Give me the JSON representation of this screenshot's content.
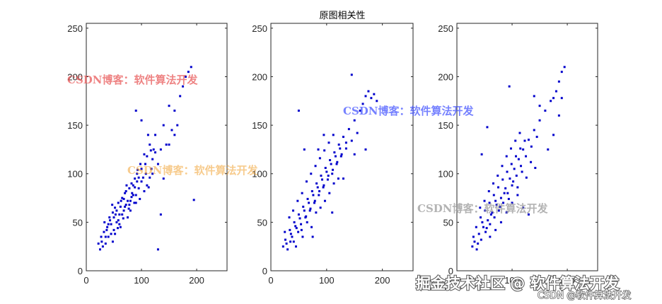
{
  "figure_title": "原图相关性",
  "colors": {
    "points": "#0000cc",
    "axes": "#262626",
    "wm_red": "#e85a5a",
    "wm_blue": "#3b4cff",
    "wm_orange": "#f0a030",
    "wm_gray": "#9a9a9a"
  },
  "watermarks": {
    "wm1": "CSDN博客：软件算法开发",
    "wm2": "CSDN博客：软件算法开发",
    "wm3": "CSDN博客：软件算法开发",
    "wm4": "CSDN博客：软件算法开发",
    "corner": "掘金技术社区 @ 软件算法开发",
    "corner_small": "CSDN @软件算法开发"
  },
  "chart_data": [
    {
      "type": "scatter",
      "title": "",
      "xlim": [
        0,
        255
      ],
      "ylim": [
        0,
        255
      ],
      "xticks": [
        0,
        100,
        200
      ],
      "yticks": [
        0,
        50,
        100,
        150,
        200,
        250
      ],
      "xtick_labels": [
        "0",
        "100",
        "200"
      ],
      "ytick_labels": [
        "0",
        "50",
        "100",
        "150",
        "200",
        "250"
      ],
      "grid": false,
      "points": [
        [
          25,
          22
        ],
        [
          28,
          30
        ],
        [
          32,
          40
        ],
        [
          35,
          28
        ],
        [
          38,
          45
        ],
        [
          40,
          35
        ],
        [
          42,
          55
        ],
        [
          45,
          48
        ],
        [
          48,
          60
        ],
        [
          50,
          42
        ],
        [
          52,
          65
        ],
        [
          55,
          50
        ],
        [
          58,
          70
        ],
        [
          60,
          58
        ],
        [
          62,
          45
        ],
        [
          65,
          75
        ],
        [
          68,
          62
        ],
        [
          70,
          80
        ],
        [
          72,
          68
        ],
        [
          75,
          55
        ],
        [
          78,
          85
        ],
        [
          80,
          72
        ],
        [
          82,
          90
        ],
        [
          85,
          78
        ],
        [
          88,
          95
        ],
        [
          90,
          70
        ],
        [
          92,
          100
        ],
        [
          95,
          85
        ],
        [
          98,
          110
        ],
        [
          100,
          92
        ],
        [
          105,
          120
        ],
        [
          108,
          100
        ],
        [
          110,
          88
        ],
        [
          115,
          130
        ],
        [
          118,
          105
        ],
        [
          120,
          115
        ],
        [
          125,
          140
        ],
        [
          130,
          110
        ],
        [
          135,
          125
        ],
        [
          140,
          150
        ],
        [
          145,
          130
        ],
        [
          150,
          170
        ],
        [
          155,
          145
        ],
        [
          160,
          165
        ],
        [
          165,
          150
        ],
        [
          170,
          180
        ],
        [
          175,
          190
        ],
        [
          180,
          200
        ],
        [
          185,
          205
        ],
        [
          190,
          210
        ],
        [
          30,
          25
        ],
        [
          35,
          35
        ],
        [
          40,
          48
        ],
        [
          45,
          38
        ],
        [
          50,
          55
        ],
        [
          55,
          62
        ],
        [
          60,
          48
        ],
        [
          65,
          58
        ],
        [
          70,
          66
        ],
        [
          75,
          72
        ],
        [
          80,
          62
        ],
        [
          85,
          88
        ],
        [
          90,
          78
        ],
        [
          95,
          96
        ],
        [
          100,
          105
        ],
        [
          105,
          82
        ],
        [
          110,
          118
        ],
        [
          115,
          96
        ],
        [
          120,
          100
        ],
        [
          125,
          122
        ],
        [
          48,
          30
        ],
        [
          52,
          38
        ],
        [
          58,
          52
        ],
        [
          62,
          66
        ],
        [
          68,
          74
        ],
        [
          72,
          82
        ],
        [
          78,
          68
        ],
        [
          82,
          76
        ],
        [
          88,
          86
        ],
        [
          92,
          92
        ],
        [
          22,
          28
        ],
        [
          27,
          35
        ],
        [
          33,
          50
        ],
        [
          37,
          42
        ],
        [
          43,
          52
        ],
        [
          47,
          68
        ],
        [
          53,
          58
        ],
        [
          57,
          44
        ],
        [
          63,
          72
        ],
        [
          67,
          54
        ],
        [
          73,
          88
        ],
        [
          77,
          64
        ],
        [
          83,
          80
        ],
        [
          87,
          70
        ],
        [
          93,
          104
        ],
        [
          97,
          74
        ],
        [
          103,
          96
        ],
        [
          107,
          110
        ],
        [
          113,
          86
        ],
        [
          117,
          124
        ],
        [
          130,
          22
        ],
        [
          195,
          73
        ],
        [
          150,
          130
        ],
        [
          160,
          140
        ],
        [
          140,
          95
        ],
        [
          135,
          58
        ],
        [
          122,
          125
        ],
        [
          112,
          140
        ],
        [
          100,
          155
        ],
        [
          90,
          165
        ]
      ]
    },
    {
      "type": "scatter",
      "title": "",
      "xlim": [
        0,
        255
      ],
      "ylim": [
        0,
        255
      ],
      "xticks": [
        0,
        100,
        200
      ],
      "yticks": [
        0,
        50,
        100,
        150,
        200,
        250
      ],
      "xtick_labels": [
        "0",
        "100",
        "200"
      ],
      "ytick_labels": [
        "0",
        "50",
        "100",
        "150",
        "200",
        "250"
      ],
      "grid": false,
      "points": [
        [
          22,
          25
        ],
        [
          26,
          32
        ],
        [
          30,
          22
        ],
        [
          34,
          42
        ],
        [
          38,
          35
        ],
        [
          42,
          50
        ],
        [
          46,
          44
        ],
        [
          50,
          58
        ],
        [
          54,
          48
        ],
        [
          58,
          66
        ],
        [
          62,
          55
        ],
        [
          66,
          74
        ],
        [
          70,
          62
        ],
        [
          74,
          82
        ],
        [
          78,
          70
        ],
        [
          82,
          90
        ],
        [
          86,
          78
        ],
        [
          90,
          98
        ],
        [
          94,
          86
        ],
        [
          98,
          106
        ],
        [
          102,
          94
        ],
        [
          106,
          114
        ],
        [
          110,
          100
        ],
        [
          114,
          122
        ],
        [
          118,
          110
        ],
        [
          122,
          130
        ],
        [
          126,
          118
        ],
        [
          130,
          138
        ],
        [
          135,
          126
        ],
        [
          140,
          146
        ],
        [
          145,
          134
        ],
        [
          150,
          155
        ],
        [
          155,
          142
        ],
        [
          160,
          165
        ],
        [
          165,
          172
        ],
        [
          170,
          180
        ],
        [
          175,
          185
        ],
        [
          180,
          178
        ],
        [
          185,
          182
        ],
        [
          190,
          175
        ],
        [
          28,
          28
        ],
        [
          36,
          38
        ],
        [
          44,
          46
        ],
        [
          52,
          54
        ],
        [
          60,
          62
        ],
        [
          68,
          70
        ],
        [
          76,
          78
        ],
        [
          84,
          86
        ],
        [
          92,
          94
        ],
        [
          100,
          102
        ],
        [
          108,
          110
        ],
        [
          116,
          118
        ],
        [
          124,
          126
        ],
        [
          40,
          62
        ],
        [
          48,
          72
        ],
        [
          56,
          80
        ],
        [
          64,
          92
        ],
        [
          72,
          100
        ],
        [
          80,
          108
        ],
        [
          88,
          116
        ],
        [
          96,
          124
        ],
        [
          104,
          132
        ],
        [
          112,
          140
        ],
        [
          33,
          55
        ],
        [
          41,
          30
        ],
        [
          49,
          40
        ],
        [
          57,
          35
        ],
        [
          65,
          50
        ],
        [
          73,
          45
        ],
        [
          81,
          60
        ],
        [
          89,
          65
        ],
        [
          97,
          72
        ],
        [
          105,
          80
        ],
        [
          113,
          90
        ],
        [
          121,
          95
        ],
        [
          50,
          165
        ],
        [
          60,
          125
        ],
        [
          150,
          120
        ],
        [
          170,
          125
        ],
        [
          145,
          202
        ],
        [
          95,
          140
        ],
        [
          85,
          125
        ],
        [
          130,
          95
        ],
        [
          110,
          60
        ],
        [
          75,
          35
        ],
        [
          25,
          40
        ],
        [
          35,
          30
        ],
        [
          45,
          25
        ],
        [
          55,
          42
        ],
        [
          63,
          56
        ],
        [
          71,
          64
        ],
        [
          79,
          72
        ],
        [
          87,
          82
        ],
        [
          95,
          88
        ],
        [
          103,
          98
        ],
        [
          111,
          104
        ],
        [
          119,
          112
        ],
        [
          127,
          120
        ],
        [
          135,
          132
        ]
      ]
    },
    {
      "type": "scatter",
      "title": "",
      "xlim": [
        0,
        255
      ],
      "ylim": [
        0,
        255
      ],
      "xticks": [
        0,
        100,
        200
      ],
      "yticks": [
        0,
        50,
        100,
        150,
        200,
        250
      ],
      "xtick_labels": [
        "0",
        "100",
        "200"
      ],
      "ytick_labels": [
        "0",
        "50",
        "100",
        "150",
        "200",
        "250"
      ],
      "grid": false,
      "points": [
        [
          28,
          25
        ],
        [
          32,
          30
        ],
        [
          36,
          22
        ],
        [
          40,
          38
        ],
        [
          44,
          32
        ],
        [
          48,
          45
        ],
        [
          52,
          40
        ],
        [
          56,
          52
        ],
        [
          60,
          48
        ],
        [
          64,
          60
        ],
        [
          68,
          55
        ],
        [
          72,
          68
        ],
        [
          76,
          62
        ],
        [
          80,
          75
        ],
        [
          84,
          70
        ],
        [
          88,
          85
        ],
        [
          92,
          80
        ],
        [
          96,
          95
        ],
        [
          100,
          88
        ],
        [
          104,
          105
        ],
        [
          108,
          98
        ],
        [
          112,
          115
        ],
        [
          116,
          108
        ],
        [
          120,
          125
        ],
        [
          125,
          118
        ],
        [
          130,
          135
        ],
        [
          135,
          128
        ],
        [
          140,
          145
        ],
        [
          145,
          138
        ],
        [
          150,
          155
        ],
        [
          160,
          165
        ],
        [
          170,
          175
        ],
        [
          180,
          185
        ],
        [
          185,
          195
        ],
        [
          190,
          205
        ],
        [
          195,
          210
        ],
        [
          30,
          35
        ],
        [
          38,
          28
        ],
        [
          46,
          50
        ],
        [
          54,
          44
        ],
        [
          62,
          58
        ],
        [
          70,
          72
        ],
        [
          78,
          66
        ],
        [
          86,
          80
        ],
        [
          94,
          74
        ],
        [
          102,
          92
        ],
        [
          110,
          86
        ],
        [
          118,
          102
        ],
        [
          126,
          96
        ],
        [
          134,
          112
        ],
        [
          142,
          106
        ],
        [
          42,
          65
        ],
        [
          50,
          72
        ],
        [
          58,
          82
        ],
        [
          66,
          90
        ],
        [
          74,
          98
        ],
        [
          82,
          108
        ],
        [
          90,
          118
        ],
        [
          98,
          126
        ],
        [
          106,
          134
        ],
        [
          114,
          142
        ],
        [
          35,
          45
        ],
        [
          43,
          55
        ],
        [
          51,
          62
        ],
        [
          59,
          70
        ],
        [
          67,
          78
        ],
        [
          75,
          86
        ],
        [
          83,
          94
        ],
        [
          91,
          102
        ],
        [
          99,
          110
        ],
        [
          107,
          118
        ],
        [
          115,
          126
        ],
        [
          123,
          134
        ],
        [
          45,
          120
        ],
        [
          55,
          148
        ],
        [
          165,
          125
        ],
        [
          175,
          140
        ],
        [
          185,
          160
        ],
        [
          175,
          178
        ],
        [
          120,
          65
        ],
        [
          130,
          58
        ],
        [
          95,
          190
        ],
        [
          60,
          35
        ],
        [
          70,
          42
        ],
        [
          80,
          50
        ],
        [
          90,
          60
        ],
        [
          100,
          70
        ],
        [
          110,
          78
        ],
        [
          140,
          180
        ],
        [
          150,
          170
        ],
        [
          190,
          178
        ]
      ]
    }
  ]
}
